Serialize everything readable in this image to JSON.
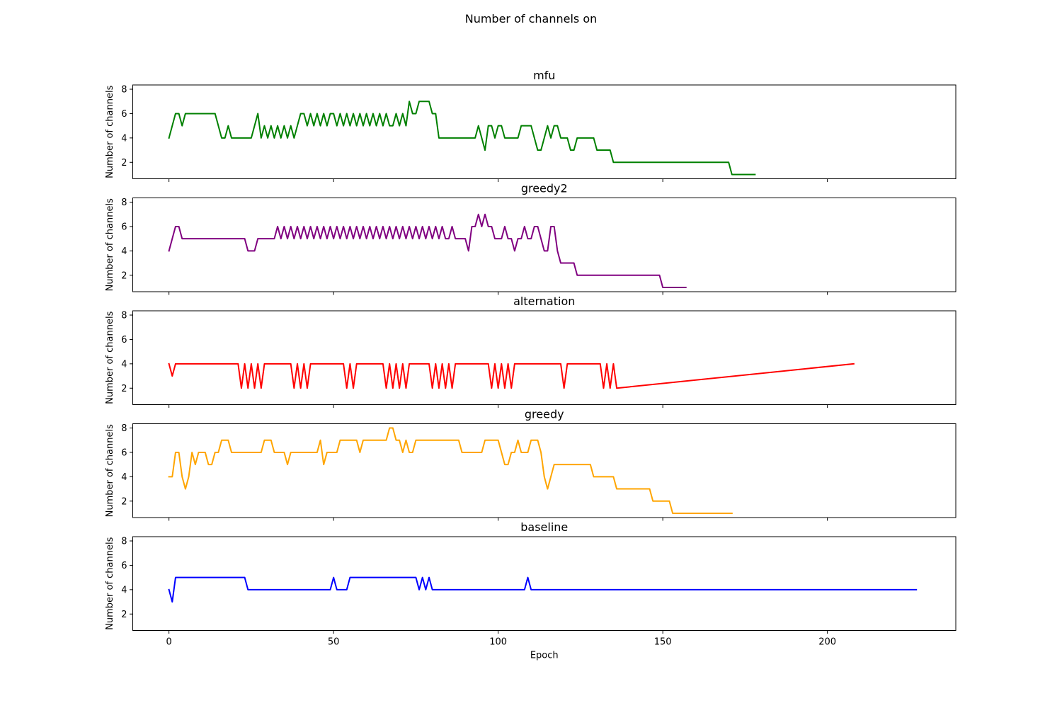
{
  "figure_title": "Number of channels on",
  "chart_data": [
    {
      "type": "line",
      "title": "mfu",
      "xlabel": "",
      "ylabel": "Number of channels",
      "color": "#008000",
      "xlim": [
        -11,
        239
      ],
      "ylim": [
        0.65,
        8.35
      ],
      "yticks": [
        2,
        4,
        6,
        8
      ],
      "xticks": [
        0,
        50,
        100,
        150,
        200
      ],
      "show_xticklabels": false,
      "grid": false,
      "series": [
        {
          "x": [
            0,
            1,
            2,
            3,
            4,
            5,
            6,
            7,
            8,
            9,
            10,
            11,
            12,
            13,
            14,
            15,
            16,
            17,
            18,
            19,
            20,
            21,
            22,
            23,
            24,
            25,
            26,
            27,
            28,
            29,
            30,
            31,
            32,
            33,
            34,
            35,
            36,
            37,
            38,
            39,
            40,
            41,
            42,
            43,
            44,
            45,
            46,
            47,
            48,
            49,
            50,
            51,
            52,
            53,
            54,
            55,
            56,
            57,
            58,
            59,
            60,
            61,
            62,
            63,
            64,
            65,
            66,
            67,
            68,
            69,
            70,
            71,
            72,
            73,
            74,
            75,
            76,
            77,
            78,
            79,
            80,
            81,
            82,
            83,
            84,
            85,
            86,
            87,
            88,
            89,
            90,
            91,
            92,
            93,
            94,
            95,
            96,
            97,
            98,
            99,
            100,
            101,
            102,
            103,
            104,
            105,
            106,
            107,
            108,
            109,
            110,
            111,
            112,
            113,
            114,
            115,
            116,
            117,
            118,
            119,
            120,
            121,
            122,
            123,
            124,
            125,
            126,
            127,
            128,
            129,
            130,
            131,
            132,
            133,
            134,
            135,
            136,
            137,
            138,
            139,
            140,
            141,
            142,
            143,
            144,
            145,
            146,
            147,
            148,
            149,
            150,
            151,
            152,
            153,
            154,
            155,
            156,
            157,
            158,
            159,
            160,
            161,
            162,
            163,
            164,
            165,
            166,
            167,
            168,
            169,
            170,
            171,
            172,
            173,
            174,
            175,
            176,
            177,
            178
          ],
          "y": [
            4,
            5,
            6,
            6,
            5,
            6,
            6,
            6,
            6,
            6,
            6,
            6,
            6,
            6,
            6,
            5,
            4,
            4,
            5,
            4,
            4,
            4,
            4,
            4,
            4,
            4,
            5,
            6,
            4,
            5,
            4,
            5,
            4,
            5,
            4,
            5,
            4,
            5,
            4,
            5,
            6,
            6,
            5,
            6,
            5,
            6,
            5,
            6,
            5,
            6,
            6,
            5,
            6,
            5,
            6,
            5,
            6,
            5,
            6,
            5,
            6,
            5,
            6,
            5,
            6,
            5,
            6,
            5,
            5,
            6,
            5,
            6,
            5,
            7,
            6,
            6,
            7,
            7,
            7,
            7,
            6,
            6,
            4,
            4,
            4,
            4,
            4,
            4,
            4,
            4,
            4,
            4,
            4,
            4,
            5,
            4,
            3,
            5,
            5,
            4,
            5,
            5,
            4,
            4,
            4,
            4,
            4,
            5,
            5,
            5,
            5,
            4,
            3,
            3,
            4,
            5,
            4,
            5,
            5,
            4,
            4,
            4,
            3,
            3,
            4,
            4,
            4,
            4,
            4,
            4,
            3,
            3,
            3,
            3,
            3,
            2,
            2,
            2,
            2,
            2,
            2,
            2,
            2,
            2,
            2,
            2,
            2,
            2,
            2,
            2,
            2,
            2,
            2,
            2,
            2,
            2,
            2,
            2,
            2,
            2,
            2,
            2,
            2,
            2,
            2,
            2,
            2,
            2,
            2,
            2,
            2,
            1,
            1,
            1,
            1,
            1,
            1,
            1,
            1
          ]
        }
      ]
    },
    {
      "type": "line",
      "title": "greedy2",
      "xlabel": "",
      "ylabel": "Number of channels",
      "color": "#800080",
      "xlim": [
        -11,
        239
      ],
      "ylim": [
        0.65,
        8.35
      ],
      "yticks": [
        2,
        4,
        6,
        8
      ],
      "xticks": [
        0,
        50,
        100,
        150,
        200
      ],
      "show_xticklabels": false,
      "grid": false,
      "series": [
        {
          "x": [
            0,
            1,
            2,
            3,
            4,
            5,
            6,
            7,
            8,
            9,
            10,
            11,
            12,
            13,
            14,
            15,
            16,
            17,
            18,
            19,
            20,
            21,
            22,
            23,
            24,
            25,
            26,
            27,
            28,
            29,
            30,
            31,
            32,
            33,
            34,
            35,
            36,
            37,
            38,
            39,
            40,
            41,
            42,
            43,
            44,
            45,
            46,
            47,
            48,
            49,
            50,
            51,
            52,
            53,
            54,
            55,
            56,
            57,
            58,
            59,
            60,
            61,
            62,
            63,
            64,
            65,
            66,
            67,
            68,
            69,
            70,
            71,
            72,
            73,
            74,
            75,
            76,
            77,
            78,
            79,
            80,
            81,
            82,
            83,
            84,
            85,
            86,
            87,
            88,
            89,
            90,
            91,
            92,
            93,
            94,
            95,
            96,
            97,
            98,
            99,
            100,
            101,
            102,
            103,
            104,
            105,
            106,
            107,
            108,
            109,
            110,
            111,
            112,
            113,
            114,
            115,
            116,
            117,
            118,
            119,
            120,
            121,
            122,
            123,
            124,
            125,
            126,
            127,
            128,
            129,
            130,
            131,
            132,
            133,
            134,
            135,
            136,
            137,
            138,
            139,
            140,
            141,
            142,
            143,
            144,
            145,
            146,
            147,
            148,
            149,
            150,
            151,
            152,
            153,
            154,
            155,
            156,
            157
          ],
          "y": [
            4,
            5,
            6,
            6,
            5,
            5,
            5,
            5,
            5,
            5,
            5,
            5,
            5,
            5,
            5,
            5,
            5,
            5,
            5,
            5,
            5,
            5,
            5,
            5,
            4,
            4,
            4,
            5,
            5,
            5,
            5,
            5,
            5,
            6,
            5,
            6,
            5,
            6,
            5,
            6,
            5,
            6,
            5,
            6,
            5,
            6,
            5,
            6,
            5,
            6,
            5,
            6,
            5,
            6,
            5,
            6,
            5,
            6,
            5,
            6,
            5,
            6,
            5,
            6,
            5,
            6,
            5,
            6,
            5,
            6,
            5,
            6,
            5,
            6,
            5,
            6,
            5,
            6,
            5,
            6,
            5,
            6,
            5,
            6,
            5,
            5,
            6,
            5,
            5,
            5,
            5,
            4,
            6,
            6,
            7,
            6,
            7,
            6,
            6,
            5,
            5,
            5,
            6,
            5,
            5,
            4,
            5,
            5,
            6,
            5,
            5,
            6,
            6,
            5,
            4,
            4,
            6,
            6,
            4,
            3,
            3,
            3,
            3,
            3,
            2,
            2,
            2,
            2,
            2,
            2,
            2,
            2,
            2,
            2,
            2,
            2,
            2,
            2,
            2,
            2,
            2,
            2,
            2,
            2,
            2,
            2,
            2,
            2,
            2,
            2,
            1,
            1,
            1,
            1,
            1,
            1,
            1,
            1
          ]
        }
      ]
    },
    {
      "type": "line",
      "title": "alternation",
      "xlabel": "",
      "ylabel": "Number of channels",
      "color": "#ff0000",
      "xlim": [
        -11,
        239
      ],
      "ylim": [
        0.65,
        8.35
      ],
      "yticks": [
        2,
        4,
        6,
        8
      ],
      "xticks": [
        0,
        50,
        100,
        150,
        200
      ],
      "show_xticklabels": false,
      "grid": false,
      "series": [
        {
          "x": [
            0,
            1,
            2,
            21,
            22,
            23,
            24,
            25,
            26,
            27,
            28,
            29,
            30,
            31,
            37,
            38,
            39,
            40,
            41,
            42,
            43,
            44,
            45,
            53,
            54,
            55,
            56,
            57,
            65,
            66,
            67,
            68,
            69,
            70,
            71,
            72,
            73,
            79,
            80,
            81,
            82,
            83,
            84,
            85,
            86,
            87,
            88,
            97,
            98,
            99,
            100,
            101,
            102,
            103,
            104,
            105,
            106,
            119,
            120,
            121,
            131,
            132,
            133,
            134,
            135,
            136,
            208
          ],
          "y": [
            4,
            3,
            4,
            4,
            2,
            4,
            2,
            4,
            2,
            4,
            2,
            4,
            4,
            4,
            4,
            2,
            4,
            2,
            4,
            2,
            4,
            4,
            4,
            4,
            2,
            4,
            2,
            4,
            4,
            2,
            4,
            2,
            4,
            2,
            4,
            2,
            4,
            4,
            2,
            4,
            2,
            4,
            2,
            4,
            2,
            4,
            4,
            4,
            2,
            4,
            2,
            4,
            2,
            4,
            2,
            4,
            4,
            4,
            2,
            4,
            4,
            2,
            4,
            2,
            4,
            2,
            4
          ]
        }
      ]
    },
    {
      "type": "line",
      "title": "greedy",
      "xlabel": "",
      "ylabel": "Number of channels",
      "color": "#ffa500",
      "xlim": [
        -11,
        239
      ],
      "ylim": [
        0.65,
        8.35
      ],
      "yticks": [
        2,
        4,
        6,
        8
      ],
      "xticks": [
        0,
        50,
        100,
        150,
        200
      ],
      "show_xticklabels": false,
      "grid": false,
      "series": [
        {
          "x": [
            0,
            1,
            2,
            3,
            4,
            5,
            6,
            7,
            8,
            9,
            10,
            11,
            12,
            13,
            14,
            15,
            16,
            17,
            18,
            19,
            28,
            29,
            30,
            31,
            32,
            33,
            34,
            35,
            36,
            37,
            45,
            46,
            47,
            48,
            49,
            50,
            51,
            52,
            53,
            54,
            55,
            56,
            57,
            58,
            59,
            60,
            66,
            67,
            68,
            69,
            70,
            71,
            72,
            73,
            74,
            75,
            76,
            88,
            89,
            90,
            95,
            96,
            97,
            98,
            99,
            100,
            101,
            102,
            103,
            104,
            105,
            106,
            107,
            108,
            109,
            110,
            111,
            112,
            113,
            114,
            115,
            116,
            117,
            118,
            119,
            120,
            128,
            129,
            130,
            135,
            136,
            146,
            147,
            148,
            152,
            153,
            171
          ],
          "y": [
            4,
            4,
            6,
            6,
            4,
            3,
            4,
            6,
            5,
            6,
            6,
            6,
            5,
            5,
            6,
            6,
            7,
            7,
            7,
            6,
            6,
            7,
            7,
            7,
            6,
            6,
            6,
            6,
            5,
            6,
            6,
            7,
            5,
            6,
            6,
            6,
            6,
            7,
            7,
            7,
            7,
            7,
            7,
            6,
            7,
            7,
            7,
            8,
            8,
            7,
            7,
            6,
            7,
            6,
            6,
            7,
            7,
            7,
            6,
            6,
            6,
            7,
            7,
            7,
            7,
            7,
            6,
            5,
            5,
            6,
            6,
            7,
            6,
            6,
            6,
            7,
            7,
            7,
            6,
            4,
            3,
            4,
            5,
            5,
            5,
            5,
            5,
            4,
            4,
            4,
            3,
            3,
            2,
            2,
            2,
            1,
            1
          ]
        }
      ]
    },
    {
      "type": "line",
      "title": "baseline",
      "xlabel": "Epoch",
      "ylabel": "Number of channels",
      "color": "#0000ff",
      "xlim": [
        -11,
        239
      ],
      "ylim": [
        0.65,
        8.35
      ],
      "yticks": [
        2,
        4,
        6,
        8
      ],
      "xticks": [
        0,
        50,
        100,
        150,
        200
      ],
      "show_xticklabels": true,
      "grid": false,
      "series": [
        {
          "x": [
            0,
            1,
            2,
            23,
            24,
            49,
            50,
            51,
            54,
            55,
            75,
            76,
            77,
            78,
            79,
            80,
            108,
            109,
            110,
            227
          ],
          "y": [
            4,
            3,
            5,
            5,
            4,
            4,
            5,
            4,
            4,
            5,
            5,
            4,
            5,
            4,
            5,
            4,
            4,
            5,
            4,
            4
          ]
        }
      ]
    }
  ]
}
